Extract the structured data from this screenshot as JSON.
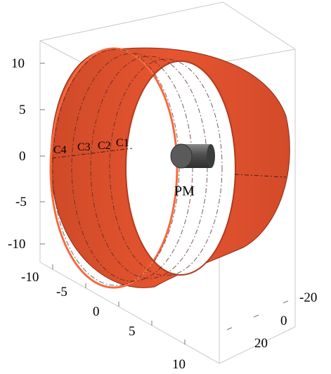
{
  "figure": {
    "vertical_axis_ticks": [
      "10",
      "5",
      "0",
      "-5",
      "-10"
    ],
    "front_axis_ticks": [
      "-10",
      "-5",
      "0",
      "5",
      "10"
    ],
    "side_axis_ticks": [
      "-20",
      "0",
      "20"
    ],
    "ring_labels": [
      "C4",
      "C3",
      "C2",
      "C1"
    ],
    "magnet_label": "PM",
    "colors": {
      "cylinder_outer": "#e8552f",
      "cylinder_rim": "#f25a30",
      "cylinder_inner": "#c24325",
      "magnet": "#5e5e5e",
      "box": "#c8c8c8"
    }
  }
}
